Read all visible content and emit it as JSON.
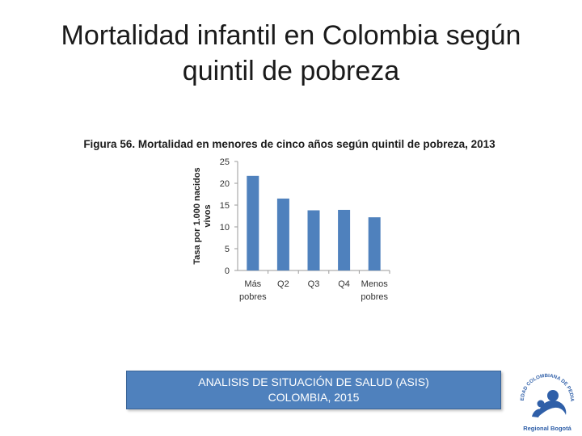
{
  "slide": {
    "title_line1": "Mortalidad infantil en Colombia según",
    "title_line2": "quintil de pobreza"
  },
  "footer": {
    "line1": "ANALISIS DE SITUACIÓN DE SALUD (ASIS)",
    "line2": "COLOMBIA, 2015"
  },
  "logo": {
    "ring_text": "SOCIEDAD COLOMBIANA DE PEDIATRÍA",
    "caption": "Regional Bogotá"
  },
  "colors": {
    "bar": "#4f81bd",
    "footer_bg": "#4f81bd",
    "logo_blue": "#2f5fa8"
  },
  "chart_data": {
    "type": "bar",
    "title": "Figura 56. Mortalidad en menores de cinco años según quintil de pobreza, 2013",
    "ylabel": "Tasa por 1.000 nacidos vivos",
    "xlabel": "",
    "categories": [
      "Más pobres",
      "Q2",
      "Q3",
      "Q4",
      "Menos pobres"
    ],
    "values": [
      21.7,
      16.5,
      13.8,
      13.9,
      12.2
    ],
    "ylim": [
      0,
      25
    ],
    "yticks": [
      0,
      5,
      10,
      15,
      20,
      25
    ],
    "grid": false
  }
}
